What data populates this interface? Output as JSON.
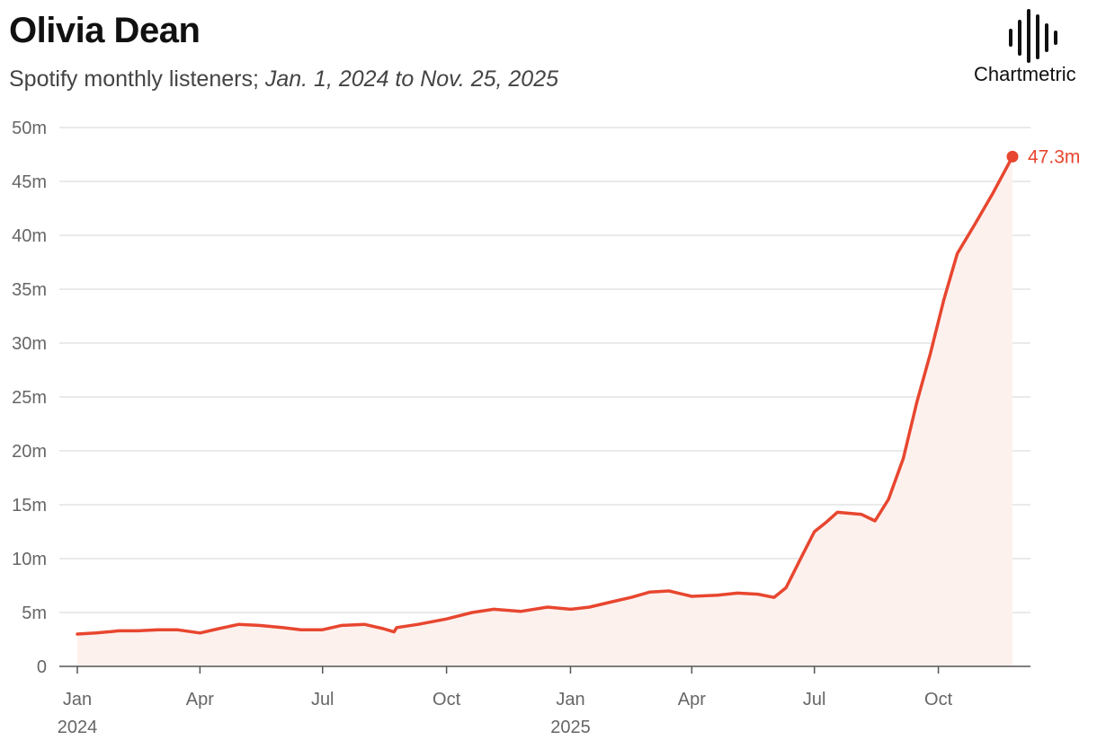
{
  "title": "Olivia Dean",
  "subtitle": {
    "prefix": "Spotify monthly listeners;",
    "range": "Jan. 1, 2024 to Nov. 25, 2025"
  },
  "brand": {
    "name": "Chartmetric",
    "icon": "soundwave-bars-icon"
  },
  "colors": {
    "line": "#e8462f",
    "area": "#fdf1ee",
    "grid": "#e4e4e4",
    "axis": "#555555"
  },
  "chart_data": {
    "type": "area",
    "x_type": "date",
    "xlim": [
      "2024-01-01",
      "2025-11-25"
    ],
    "ylim": [
      0,
      50
    ],
    "unit": "m",
    "grid": true,
    "legend": "none",
    "y_ticks": [
      {
        "value": 0,
        "label": "0"
      },
      {
        "value": 5,
        "label": "5m"
      },
      {
        "value": 10,
        "label": "10m"
      },
      {
        "value": 15,
        "label": "15m"
      },
      {
        "value": 20,
        "label": "20m"
      },
      {
        "value": 25,
        "label": "25m"
      },
      {
        "value": 30,
        "label": "30m"
      },
      {
        "value": 35,
        "label": "35m"
      },
      {
        "value": 40,
        "label": "40m"
      },
      {
        "value": 45,
        "label": "45m"
      },
      {
        "value": 50,
        "label": "50m"
      }
    ],
    "x_ticks": [
      {
        "date": "2024-01-01",
        "label": "Jan",
        "year": "2024"
      },
      {
        "date": "2024-04-01",
        "label": "Apr",
        "year": ""
      },
      {
        "date": "2024-07-01",
        "label": "Jul",
        "year": ""
      },
      {
        "date": "2024-10-01",
        "label": "Oct",
        "year": ""
      },
      {
        "date": "2025-01-01",
        "label": "Jan",
        "year": "2025"
      },
      {
        "date": "2025-04-01",
        "label": "Apr",
        "year": ""
      },
      {
        "date": "2025-07-01",
        "label": "Jul",
        "year": ""
      },
      {
        "date": "2025-10-01",
        "label": "Oct",
        "year": ""
      }
    ],
    "end_label": "47.3m",
    "series": [
      {
        "points": [
          [
            "2024-01-01",
            3.0
          ],
          [
            "2024-01-15",
            3.1
          ],
          [
            "2024-02-01",
            3.3
          ],
          [
            "2024-02-15",
            3.3
          ],
          [
            "2024-03-01",
            3.4
          ],
          [
            "2024-03-15",
            3.4
          ],
          [
            "2024-04-01",
            3.1
          ],
          [
            "2024-04-15",
            3.5
          ],
          [
            "2024-04-30",
            3.9
          ],
          [
            "2024-05-15",
            3.8
          ],
          [
            "2024-06-01",
            3.6
          ],
          [
            "2024-06-15",
            3.4
          ],
          [
            "2024-07-01",
            3.4
          ],
          [
            "2024-07-15",
            3.8
          ],
          [
            "2024-08-01",
            3.9
          ],
          [
            "2024-08-15",
            3.5
          ],
          [
            "2024-08-23",
            3.2
          ],
          [
            "2024-08-25",
            3.6
          ],
          [
            "2024-09-10",
            3.9
          ],
          [
            "2024-10-01",
            4.4
          ],
          [
            "2024-10-20",
            5.0
          ],
          [
            "2024-11-05",
            5.3
          ],
          [
            "2024-11-25",
            5.1
          ],
          [
            "2024-12-15",
            5.5
          ],
          [
            "2025-01-01",
            5.3
          ],
          [
            "2025-01-15",
            5.5
          ],
          [
            "2025-02-01",
            6.0
          ],
          [
            "2025-02-15",
            6.4
          ],
          [
            "2025-03-01",
            6.9
          ],
          [
            "2025-03-15",
            7.0
          ],
          [
            "2025-04-01",
            6.5
          ],
          [
            "2025-04-20",
            6.6
          ],
          [
            "2025-05-05",
            6.8
          ],
          [
            "2025-05-20",
            6.7
          ],
          [
            "2025-06-01",
            6.4
          ],
          [
            "2025-06-10",
            7.3
          ],
          [
            "2025-06-20",
            9.8
          ],
          [
            "2025-07-01",
            12.5
          ],
          [
            "2025-07-10",
            13.4
          ],
          [
            "2025-07-18",
            14.3
          ],
          [
            "2025-08-05",
            14.1
          ],
          [
            "2025-08-15",
            13.5
          ],
          [
            "2025-08-25",
            15.5
          ],
          [
            "2025-09-05",
            19.3
          ],
          [
            "2025-09-15",
            24.5
          ],
          [
            "2025-09-25",
            29.0
          ],
          [
            "2025-10-05",
            34.0
          ],
          [
            "2025-10-15",
            38.3
          ],
          [
            "2025-10-28",
            41.0
          ],
          [
            "2025-11-10",
            43.8
          ],
          [
            "2025-11-25",
            47.3
          ]
        ]
      }
    ]
  }
}
